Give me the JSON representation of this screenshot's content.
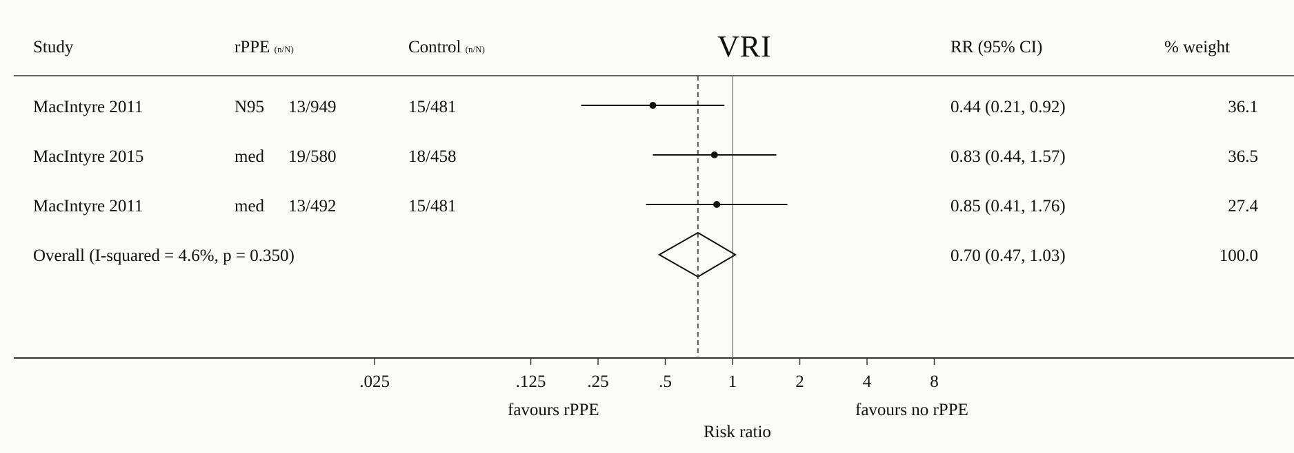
{
  "chart_data": {
    "type": "forest",
    "title": "VRI",
    "columns": {
      "study": "Study",
      "rppe": "rPPE",
      "rppe_unit": "(n/N)",
      "control": "Control",
      "control_unit": "(n/N)",
      "rr": "RR (95% CI)",
      "weight": "% weight"
    },
    "studies": [
      {
        "study": "MacIntyre 2011",
        "type": "N95",
        "rppe": "13/949",
        "control": "15/481",
        "rr": 0.44,
        "lo": 0.21,
        "hi": 0.92,
        "rr_text": "0.44 (0.21, 0.92)",
        "weight": "36.1"
      },
      {
        "study": "MacIntyre 2015",
        "type": "med",
        "rppe": "19/580",
        "control": "18/458",
        "rr": 0.83,
        "lo": 0.44,
        "hi": 1.57,
        "rr_text": "0.83 (0.44, 1.57)",
        "weight": "36.5"
      },
      {
        "study": "MacIntyre 2011",
        "type": "med",
        "rppe": "13/492",
        "control": "15/481",
        "rr": 0.85,
        "lo": 0.41,
        "hi": 1.76,
        "rr_text": "0.85 (0.41, 1.76)",
        "weight": "27.4"
      }
    ],
    "overall": {
      "label": "Overall  (I-squared = 4.6%, p = 0.350)",
      "rr": 0.7,
      "lo": 0.47,
      "hi": 1.03,
      "rr_text": "0.70 (0.47, 1.03)",
      "weight": "100.0"
    },
    "x_scale": "log",
    "x_ticks": [
      ".025",
      ".125",
      ".25",
      ".5",
      "1",
      "2",
      "4",
      "8"
    ],
    "x_tick_values": [
      0.025,
      0.125,
      0.25,
      0.5,
      1,
      2,
      4,
      8
    ],
    "xlabel": "Risk ratio",
    "favours_left": "favours rPPE",
    "favours_right": "favours no rPPE"
  }
}
